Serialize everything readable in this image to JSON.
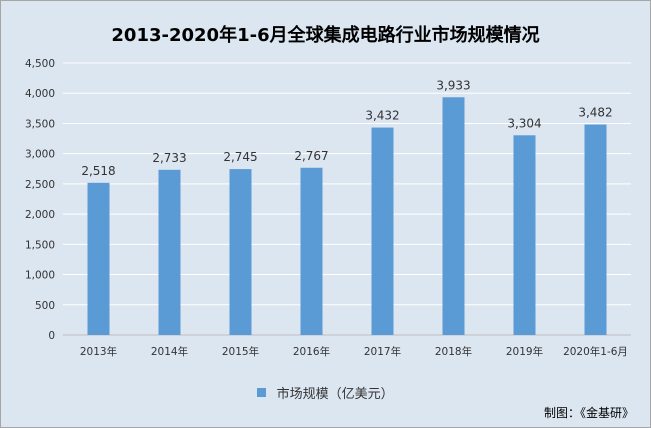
{
  "chart_data": {
    "type": "bar",
    "title": "2013-2020年1-6月全球集成电路行业市场规模情况",
    "categories": [
      "2013年",
      "2014年",
      "2015年",
      "2016年",
      "2017年",
      "2018年",
      "2019年",
      "2020年1-6月"
    ],
    "series": [
      {
        "name": "市场规模（亿美元）",
        "values": [
          2518,
          2733,
          2745,
          2767,
          3432,
          3933,
          3304,
          3482
        ],
        "labels": [
          "2,518",
          "2,733",
          "2,745",
          "2,767",
          "3,432",
          "3,933",
          "3,304",
          "3,482"
        ],
        "color": "#5b9bd5"
      }
    ],
    "ylim": [
      0,
      4500
    ],
    "yticks": [
      0,
      500,
      1000,
      1500,
      2000,
      2500,
      3000,
      3500,
      4000,
      4500
    ],
    "ytick_labels": [
      "0",
      "500",
      "1,000",
      "1,500",
      "2,000",
      "2,500",
      "3,000",
      "3,500",
      "4,000",
      "4,500"
    ],
    "grid": true,
    "legend_position": "bottom"
  },
  "credit": "制图：《金基研》",
  "colors": {
    "background": "#dce6f1",
    "bar": "#5b9bd5",
    "grid": "#ffffff"
  }
}
